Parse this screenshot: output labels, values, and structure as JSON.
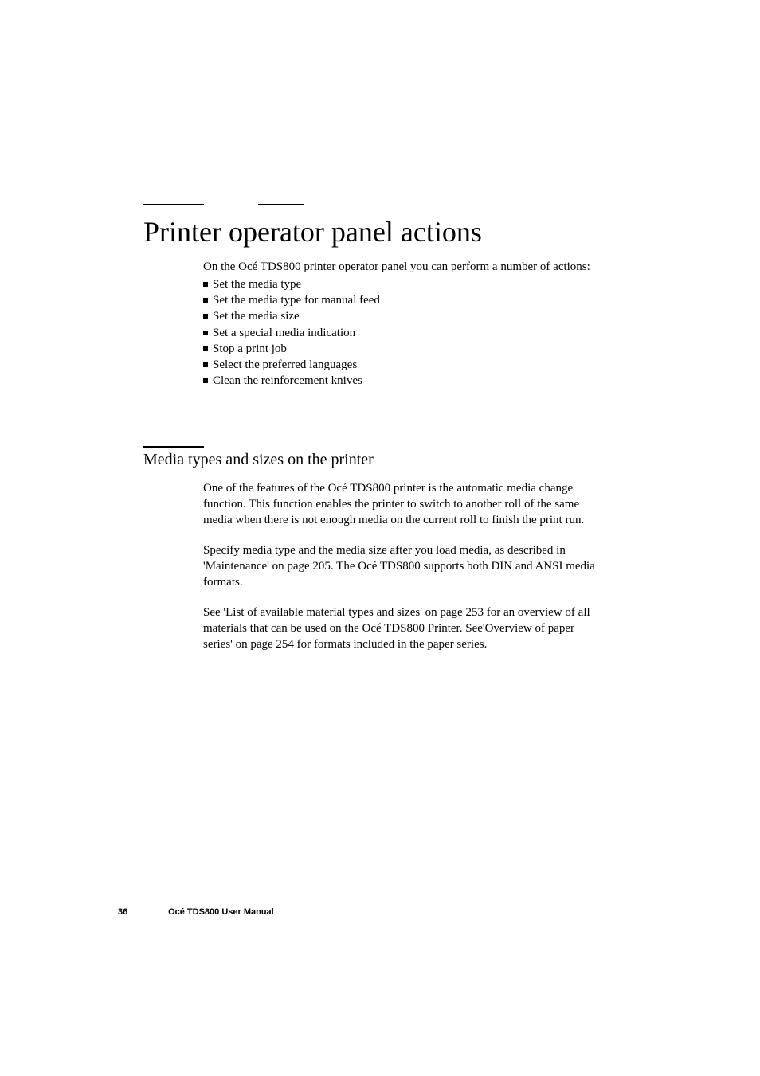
{
  "title": "Printer operator panel actions",
  "intro": "On the Océ TDS800 printer operator panel you can perform a number of actions:",
  "bullets": [
    "Set the media type",
    "Set the media type for manual feed",
    "Set the media size",
    "Set a special media indication",
    "Stop a print job",
    "Select the preferred languages",
    "Clean the reinforcement knives"
  ],
  "section": {
    "title": "Media types and sizes on the printer",
    "paragraphs": [
      "One of the features of the Océ TDS800 printer is the automatic media change function. This function enables the printer to switch to another roll of the same media when there is not enough media on the current roll to finish the print run.",
      "Specify media type and the media size after you load media, as described in 'Maintenance' on page 205. The Océ TDS800 supports both DIN and ANSI media formats.",
      "See 'List of available material types and sizes' on page 253 for an overview of all materials that can be used on the Océ TDS800 Printer. See'Overview of paper series' on page 254 for formats included in the paper series."
    ]
  },
  "footer": {
    "page_number": "36",
    "doc_title": "Océ TDS800 User Manual"
  },
  "colors": {
    "text": "#000000",
    "background": "#ffffff"
  },
  "fonts": {
    "body_family": "Times New Roman",
    "footer_family": "Arial",
    "title_size_pt": 27,
    "section_size_pt": 15,
    "body_size_pt": 11,
    "footer_size_pt": 8
  }
}
